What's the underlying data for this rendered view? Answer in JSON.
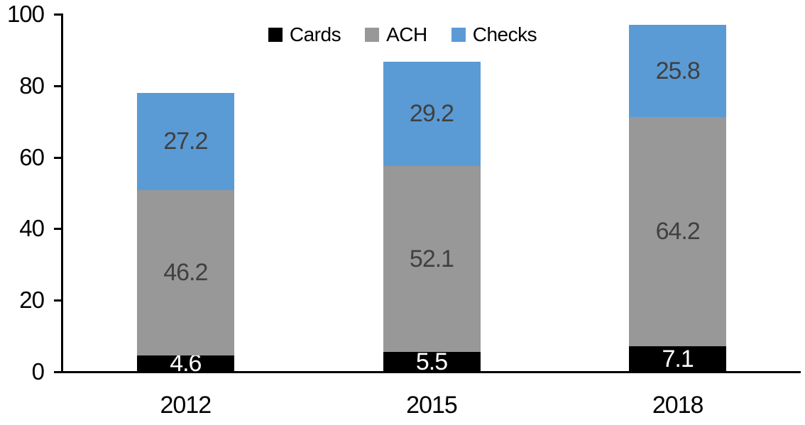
{
  "chart_data": {
    "type": "bar",
    "stacked": true,
    "categories": [
      "2012",
      "2015",
      "2018"
    ],
    "series": [
      {
        "name": "Cards",
        "color": "#000000",
        "label_color": "#ffffff",
        "values": [
          4.6,
          5.5,
          7.1
        ]
      },
      {
        "name": "ACH",
        "color": "#989898",
        "label_color": "#404040",
        "values": [
          46.2,
          52.1,
          64.2
        ]
      },
      {
        "name": "Checks",
        "color": "#5b9bd5",
        "label_color": "#404040",
        "values": [
          27.2,
          29.2,
          25.8
        ]
      }
    ],
    "ylim": [
      0,
      100
    ],
    "yticks": [
      0,
      20,
      40,
      60,
      80,
      100
    ],
    "legend_position": "top-center",
    "grid": false,
    "axis_color": "#000000",
    "background_color": "#ffffff"
  }
}
